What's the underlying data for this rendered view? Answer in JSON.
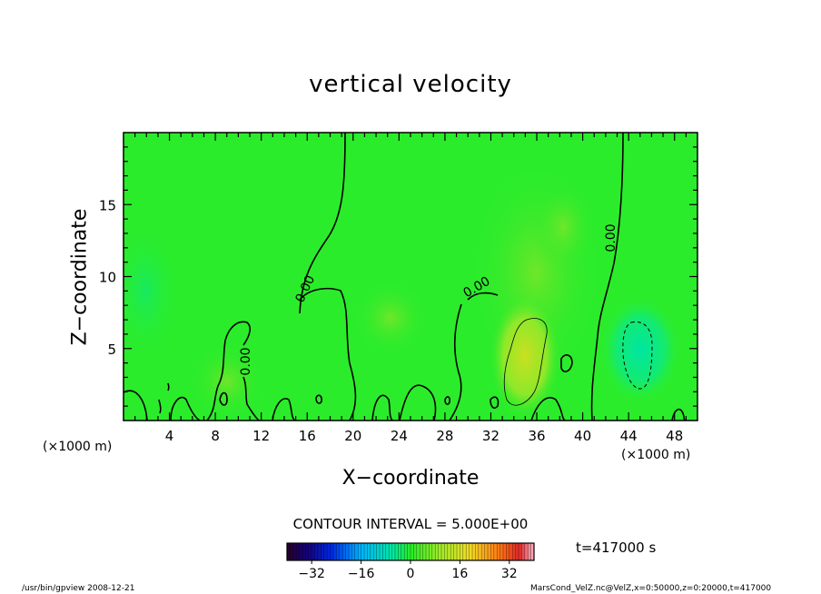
{
  "chart_data": {
    "type": "heatmap",
    "title": "vertical velocity",
    "xlabel": "X−coordinate",
    "ylabel": "Z−coordinate",
    "x_unit_left": "(×1000 m)",
    "x_unit_right": "(×1000 m)",
    "xlim": [
      0,
      50
    ],
    "ylim": [
      0,
      20
    ],
    "xticks": [
      4,
      8,
      12,
      16,
      20,
      24,
      28,
      32,
      36,
      40,
      44,
      48
    ],
    "xtick_labels": [
      "4",
      "8",
      "12",
      "16",
      "20",
      "24",
      "28",
      "32",
      "36",
      "40",
      "44",
      "48"
    ],
    "yticks": [
      5,
      10,
      15
    ],
    "ytick_labels": [
      "5",
      "10",
      "15"
    ],
    "contour_interval_text": "CONTOUR INTERVAL = 5.000E+00",
    "contour_labels": [
      "0.00",
      "0.00",
      "0.00",
      "0.00"
    ],
    "colorbar": {
      "range": [
        -40,
        40
      ],
      "ticks": [
        -32,
        -16,
        0,
        16,
        32
      ],
      "tick_labels": [
        "−32",
        "−16",
        "0",
        "16",
        "32"
      ]
    },
    "features": [
      {
        "kind": "positive-max",
        "x": 35,
        "z": 4.2,
        "value": 5
      },
      {
        "kind": "negative-min",
        "x": 44.8,
        "z": 4.5,
        "value": -5
      }
    ],
    "colors": {
      "background_field": "#2bec2b",
      "positive": "#a8e628",
      "negative": "#00e68a"
    }
  },
  "annotations": {
    "time": "t=417000 s",
    "footer_left": "/usr/bin/gpview   2008-12-21",
    "footer_right": "MarsCond_VelZ.nc@VelZ,x=0:50000,z=0:20000,t=417000"
  }
}
